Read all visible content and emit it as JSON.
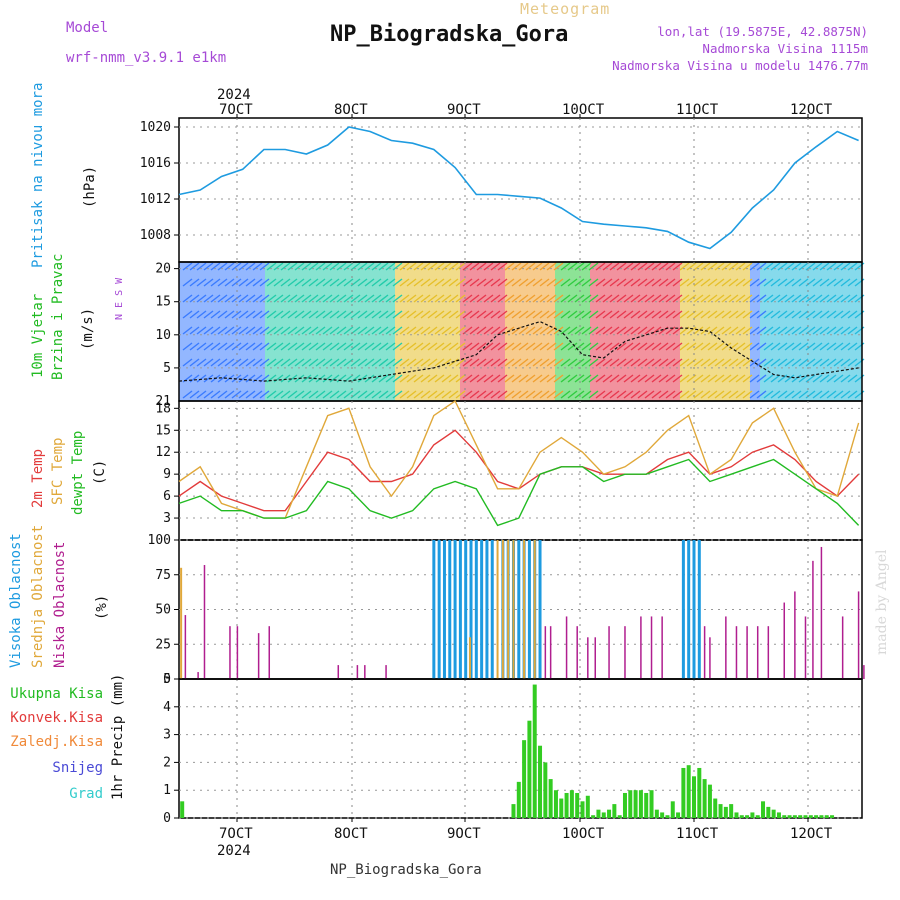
{
  "header": {
    "meteogram_label": "Meteogram",
    "station_title": "NP_Biogradska_Gora",
    "model_label": "Model",
    "model_name": "wrf-nmm_v3.9.1 e1km",
    "coords": "lon,lat (19.5875E, 42.8875N)",
    "altitude": "Nadmorska Visina 1115m",
    "model_altitude": "Nadmorska Visina u modelu 1476.77m"
  },
  "footer": {
    "station_name": "NP_Biogradska_Gora",
    "watermark": "made by Angel"
  },
  "colors": {
    "pressure": "#1e9be0",
    "temp2m": "#e23b3b",
    "sfc_temp": "#e0a83a",
    "dewpoint": "#22bb22",
    "high_cloud": "#1e9be0",
    "mid_cloud": "#e0a83a",
    "low_cloud": "#b01e8f",
    "precip": "#33cc22",
    "title_left": "#a64ad6",
    "meteogram": "#e6c98a"
  },
  "chart_data": [
    {
      "type": "line",
      "panel": "pressure",
      "ylabel": [
        "Pritisak na nivou mora",
        "(hPa)"
      ],
      "ylim": [
        1005,
        1021
      ],
      "yticks": [
        1008,
        1012,
        1016,
        1020
      ],
      "x": [
        6.0,
        6.2,
        6.4,
        6.6,
        6.8,
        7.0,
        7.2,
        7.4,
        7.6,
        7.8,
        8.0,
        8.2,
        8.4,
        8.6,
        8.8,
        9.0,
        9.2,
        9.4,
        9.6,
        9.8,
        10.0,
        10.2,
        10.4,
        10.6,
        10.8,
        11.0,
        11.2,
        11.4,
        11.6,
        11.8,
        12.0,
        12.2,
        12.4
      ],
      "values": [
        1012.5,
        1013.0,
        1014.5,
        1015.3,
        1017.5,
        1017.5,
        1017.0,
        1018.0,
        1020.0,
        1019.5,
        1018.5,
        1018.2,
        1017.5,
        1015.5,
        1012.5,
        1012.5,
        1012.3,
        1012.1,
        1011.0,
        1009.5,
        1009.2,
        1009.0,
        1008.8,
        1008.4,
        1007.2,
        1006.5,
        1008.3,
        1011.0,
        1013.0,
        1016.0,
        1017.8,
        1019.5,
        1018.5
      ]
    },
    {
      "type": "line",
      "panel": "wind",
      "ylabel": [
        "10m Vjetar",
        "Brzina i Pravac",
        "(m/s)"
      ],
      "compass": "N E S W",
      "ylim": [
        0,
        21
      ],
      "yticks": [
        5,
        10,
        15,
        20
      ],
      "bottom_tick_label": "21",
      "x": [
        6.0,
        6.4,
        6.8,
        7.2,
        7.6,
        8.0,
        8.4,
        8.8,
        9.0,
        9.2,
        9.4,
        9.6,
        9.8,
        10.0,
        10.2,
        10.4,
        10.6,
        10.8,
        11.0,
        11.2,
        11.4,
        11.6,
        11.8,
        12.0,
        12.4
      ],
      "values": [
        3.0,
        3.5,
        3.0,
        3.5,
        3.0,
        4.0,
        5.0,
        7.0,
        10.0,
        11.0,
        12.0,
        10.5,
        7.0,
        6.5,
        9.0,
        10.0,
        11.0,
        11.0,
        10.5,
        8.0,
        6.0,
        4.0,
        3.5,
        4.0,
        5.0
      ]
    },
    {
      "type": "line",
      "panel": "temperature",
      "ylabel": [
        "2m Temp",
        "SFC Temp",
        "dewpt Temp",
        "(C)"
      ],
      "ylim": [
        0,
        19
      ],
      "yticks": [
        3,
        6,
        9,
        12,
        15,
        18
      ],
      "x": [
        6.0,
        6.2,
        6.4,
        6.6,
        6.8,
        7.0,
        7.2,
        7.4,
        7.6,
        7.8,
        8.0,
        8.2,
        8.4,
        8.6,
        8.8,
        9.0,
        9.2,
        9.4,
        9.6,
        9.8,
        10.0,
        10.2,
        10.4,
        10.6,
        10.8,
        11.0,
        11.2,
        11.4,
        11.6,
        11.8,
        12.0,
        12.2,
        12.4
      ],
      "series": [
        {
          "name": "2m Temp",
          "values": [
            6,
            8,
            6,
            5,
            4,
            4,
            8,
            12,
            11,
            8,
            8,
            9,
            13,
            15,
            12,
            8,
            7,
            9,
            10,
            10,
            9,
            9,
            9,
            11,
            12,
            9,
            10,
            12,
            13,
            11,
            8,
            6,
            9
          ]
        },
        {
          "name": "SFC Temp",
          "values": [
            8,
            10,
            5,
            4,
            3,
            3,
            10,
            17,
            18,
            10,
            6,
            10,
            17,
            19,
            13,
            7,
            7,
            12,
            14,
            12,
            9,
            10,
            12,
            15,
            17,
            9,
            11,
            16,
            18,
            12,
            7,
            6,
            16
          ]
        },
        {
          "name": "dewpt Temp",
          "values": [
            5,
            6,
            4,
            4,
            3,
            3,
            4,
            8,
            7,
            4,
            3,
            4,
            7,
            8,
            7,
            2,
            3,
            9,
            10,
            10,
            8,
            9,
            9,
            10,
            11,
            8,
            9,
            10,
            11,
            9,
            7,
            5,
            2
          ]
        }
      ]
    },
    {
      "type": "bar",
      "panel": "cloud",
      "ylabel": [
        "Visoka Oblacnost",
        "Srednja Oblacnost",
        "Niska Oblacnost",
        "(%)"
      ],
      "ylim": [
        0,
        100
      ],
      "yticks": [
        0,
        25,
        50,
        75,
        100
      ],
      "series": [
        {
          "name": "Visoka Oblacnost",
          "x": [
            8.4,
            8.45,
            8.5,
            8.55,
            8.6,
            8.65,
            8.7,
            8.75,
            8.8,
            8.85,
            8.9,
            8.95,
            9.05,
            9.1,
            9.15,
            9.2,
            9.25,
            9.3,
            9.35,
            9.4,
            10.75,
            10.8,
            10.85,
            10.9
          ],
          "values": [
            100,
            100,
            100,
            100,
            100,
            100,
            100,
            100,
            100,
            100,
            100,
            100,
            100,
            100,
            100,
            100,
            100,
            100,
            100,
            100,
            100,
            100,
            100,
            100
          ]
        },
        {
          "name": "Srednja Oblacnost",
          "x": [
            6.02,
            8.74,
            9.0,
            9.05,
            9.1,
            9.15,
            9.25,
            9.35
          ],
          "values": [
            80,
            30,
            100,
            100,
            100,
            100,
            100,
            100
          ]
        },
        {
          "name": "Niska Oblacnost",
          "x": [
            6.06,
            6.18,
            6.24,
            6.48,
            6.55,
            6.75,
            6.85,
            7.5,
            7.68,
            7.75,
            7.95,
            9.45,
            9.5,
            9.65,
            9.75,
            9.85,
            9.92,
            10.05,
            10.2,
            10.35,
            10.45,
            10.55,
            10.95,
            11.0,
            11.15,
            11.25,
            11.35,
            11.45,
            11.55,
            11.7,
            11.8,
            11.9,
            11.97,
            12.05,
            12.25,
            12.4,
            12.45
          ],
          "values": [
            46,
            5,
            82,
            38,
            38,
            33,
            38,
            10,
            10,
            10,
            10,
            38,
            38,
            45,
            38,
            30,
            30,
            38,
            38,
            45,
            45,
            45,
            38,
            30,
            45,
            38,
            38,
            38,
            38,
            55,
            63,
            45,
            85,
            95,
            45,
            63,
            10
          ]
        }
      ]
    },
    {
      "type": "bar",
      "panel": "precip",
      "ylabel": [
        "1hr Precip (mm)"
      ],
      "legend": [
        "Ukupna Kisa",
        "Konvek.Kisa",
        "Zaledj.Kisa",
        "Snijeg",
        "Grad"
      ],
      "ylim": [
        0,
        5
      ],
      "yticks": [
        0,
        1,
        2,
        3,
        4,
        5
      ],
      "series": [
        {
          "name": "Ukupna Kisa",
          "x": [
            6.03,
            9.15,
            9.2,
            9.25,
            9.3,
            9.35,
            9.4,
            9.45,
            9.5,
            9.55,
            9.6,
            9.65,
            9.7,
            9.75,
            9.8,
            9.85,
            9.9,
            9.95,
            10.0,
            10.05,
            10.1,
            10.15,
            10.2,
            10.25,
            10.3,
            10.35,
            10.4,
            10.45,
            10.5,
            10.55,
            10.6,
            10.65,
            10.7,
            10.75,
            10.8,
            10.85,
            10.9,
            10.95,
            11.0,
            11.05,
            11.1,
            11.15,
            11.2,
            11.25,
            11.3,
            11.35,
            11.4,
            11.45,
            11.5,
            11.55,
            11.6,
            11.65,
            11.7,
            11.75,
            11.8,
            11.85,
            11.9,
            11.95,
            12.0,
            12.05,
            12.1,
            12.15
          ],
          "values": [
            0.6,
            0.5,
            1.3,
            2.8,
            3.5,
            4.8,
            2.6,
            2.0,
            1.4,
            1.0,
            0.7,
            0.9,
            1.0,
            0.9,
            0.6,
            0.8,
            0.1,
            0.3,
            0.2,
            0.3,
            0.5,
            0.1,
            0.9,
            1.0,
            1.0,
            1.0,
            0.9,
            1.0,
            0.3,
            0.2,
            0.1,
            0.6,
            0.2,
            1.8,
            1.9,
            1.5,
            1.8,
            1.4,
            1.2,
            0.7,
            0.5,
            0.4,
            0.5,
            0.2,
            0.1,
            0.1,
            0.2,
            0.1,
            0.6,
            0.4,
            0.3,
            0.2,
            0.1,
            0.1,
            0.1,
            0.1,
            0.1,
            0.1,
            0.1,
            0.1,
            0.1,
            0.1
          ]
        }
      ]
    }
  ],
  "xaxis": {
    "year_top": "2024",
    "year_bottom": "2024",
    "tick_labels": [
      "7OCT",
      "8OCT",
      "9OCT",
      "10OCT",
      "11OCT",
      "12OCT"
    ]
  }
}
